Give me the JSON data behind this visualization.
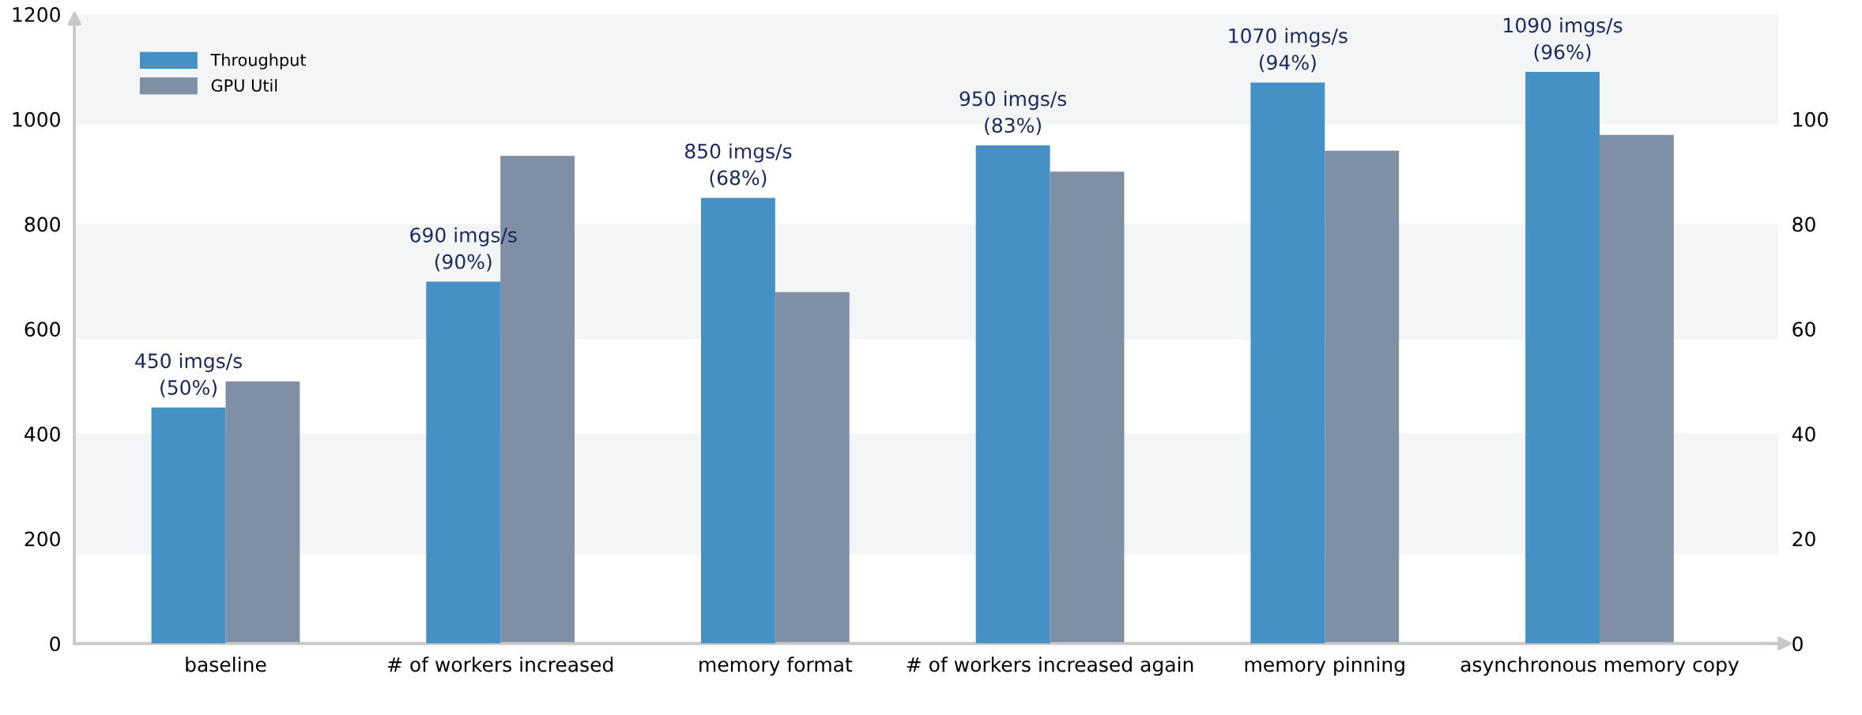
{
  "chart_data": {
    "type": "bar",
    "categories": [
      "baseline",
      "# of workers increased",
      "memory format",
      "# of workers increased again",
      "memory pinning",
      "asynchronous memory copy"
    ],
    "series": [
      {
        "name": "Throughput",
        "color": "#4590c4",
        "values": [
          450,
          690,
          850,
          950,
          1070,
          1090
        ],
        "value_labels": [
          "450 imgs/s\n(50%)",
          "690 imgs/s\n(90%)",
          "850 imgs/s\n(68%)",
          "950 imgs/s\n(83%)",
          "1070 imgs/s\n(94%)",
          "1090 imgs/s\n(96%)"
        ]
      },
      {
        "name": "GPU Util",
        "color": "#7f8fa4",
        "axis": "y2",
        "values": [
          50,
          93,
          67,
          90,
          94,
          97
        ]
      }
    ],
    "ylim": [
      0,
      1200
    ],
    "yticks": [
      0,
      200,
      400,
      600,
      800,
      1000,
      1200
    ],
    "y2lim": [
      0,
      120
    ],
    "y2ticks": [
      0,
      20,
      40,
      60,
      80,
      100
    ],
    "bands": [
      {
        "axis": "y",
        "from": 170,
        "to": 400,
        "color": "#f4f5f7"
      },
      {
        "axis": "y",
        "from": 580,
        "to": 800,
        "color": "#f4f5f7"
      },
      {
        "axis": "y",
        "from": 990,
        "to": 1200,
        "color": "#f4f5f7"
      }
    ],
    "grid": false,
    "legend": "top left"
  }
}
